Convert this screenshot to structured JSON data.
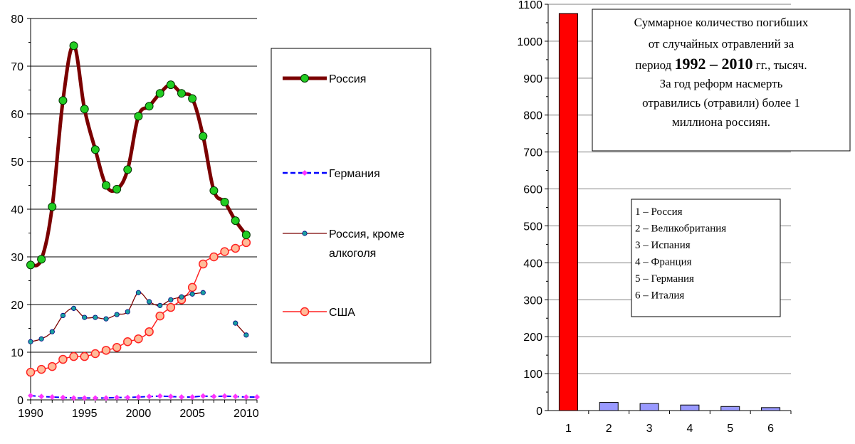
{
  "chart_data": [
    {
      "type": "line",
      "title": "",
      "xlabel": "",
      "ylabel": "",
      "xlim": [
        1990,
        2011
      ],
      "ylim": [
        0,
        80
      ],
      "x_ticks": [
        "1990",
        "1995",
        "2000",
        "2005",
        "2010"
      ],
      "y_ticks": [
        "0",
        "10",
        "20",
        "30",
        "40",
        "50",
        "60",
        "70",
        "80"
      ],
      "grid": "horizontal",
      "legend_position": "right",
      "series": [
        {
          "name": "Россия",
          "color": "#7b0000",
          "marker_color": "#22cc22",
          "points": [
            [
              1990,
              28.3
            ],
            [
              1991,
              29.5
            ],
            [
              1992,
              40.5
            ],
            [
              1993,
              62.8
            ],
            [
              1994,
              74.3
            ],
            [
              1995,
              61.0
            ],
            [
              1996,
              52.5
            ],
            [
              1997,
              45.0
            ],
            [
              1998,
              44.2
            ],
            [
              1999,
              48.3
            ],
            [
              2000,
              59.5
            ],
            [
              2001,
              61.6
            ],
            [
              2002,
              64.3
            ],
            [
              2003,
              66.1
            ],
            [
              2004,
              64.3
            ],
            [
              2005,
              63.2
            ],
            [
              2006,
              55.3
            ],
            [
              2007,
              43.9
            ],
            [
              2008,
              41.5
            ],
            [
              2009,
              37.6
            ],
            [
              2010,
              34.6
            ]
          ]
        },
        {
          "name": "Германия",
          "color": "#0000ff",
          "marker_color": "#ff33ff",
          "points": [
            [
              1990,
              0.9
            ],
            [
              1991,
              0.7
            ],
            [
              1992,
              0.6
            ],
            [
              1993,
              0.5
            ],
            [
              1994,
              0.4
            ],
            [
              1995,
              0.4
            ],
            [
              1996,
              0.4
            ],
            [
              1997,
              0.4
            ],
            [
              1998,
              0.5
            ],
            [
              1999,
              0.5
            ],
            [
              2000,
              0.6
            ],
            [
              2001,
              0.7
            ],
            [
              2002,
              0.8
            ],
            [
              2003,
              0.7
            ],
            [
              2004,
              0.6
            ],
            [
              2005,
              0.6
            ],
            [
              2006,
              0.8
            ],
            [
              2007,
              0.7
            ],
            [
              2008,
              0.8
            ],
            [
              2009,
              0.7
            ],
            [
              2010,
              0.6
            ],
            [
              2011,
              0.6
            ]
          ]
        },
        {
          "name": "Россия, кроме алкоголя",
          "color": "#7b0000",
          "marker_color": "#1aa0a0",
          "segments": [
            [
              [
                1990,
                12.2
              ],
              [
                1991,
                12.8
              ],
              [
                1992,
                14.3
              ],
              [
                1993,
                17.7
              ],
              [
                1994,
                19.2
              ],
              [
                1995,
                17.3
              ],
              [
                1996,
                17.3
              ],
              [
                1997,
                17.0
              ],
              [
                1998,
                17.9
              ],
              [
                1999,
                18.5
              ],
              [
                2000,
                22.5
              ],
              [
                2001,
                20.6
              ],
              [
                2002,
                19.8
              ],
              [
                2003,
                21.0
              ],
              [
                2004,
                21.6
              ],
              [
                2005,
                22.2
              ],
              [
                2006,
                22.5
              ]
            ],
            [
              [
                2009,
                16.1
              ],
              [
                2010,
                13.6
              ]
            ]
          ]
        },
        {
          "name": "США",
          "color": "#ff2222",
          "marker_color": "#ffbb99",
          "points": [
            [
              1990,
              5.8
            ],
            [
              1991,
              6.4
            ],
            [
              1992,
              7.0
            ],
            [
              1993,
              8.5
            ],
            [
              1994,
              9.1
            ],
            [
              1995,
              9.1
            ],
            [
              1996,
              9.7
            ],
            [
              1997,
              10.4
            ],
            [
              1998,
              11.0
            ],
            [
              1999,
              12.2
            ],
            [
              2000,
              12.8
            ],
            [
              2001,
              14.3
            ],
            [
              2002,
              17.6
            ],
            [
              2003,
              19.4
            ],
            [
              2004,
              21.0
            ],
            [
              2005,
              23.6
            ],
            [
              2006,
              28.5
            ],
            [
              2007,
              30.0
            ],
            [
              2008,
              31.1
            ],
            [
              2009,
              31.8
            ],
            [
              2010,
              33.0
            ]
          ]
        }
      ]
    },
    {
      "type": "bar",
      "title": "",
      "categories": [
        "1",
        "2",
        "3",
        "4",
        "5",
        "6"
      ],
      "values": [
        1075,
        22,
        19,
        15,
        11,
        8
      ],
      "bar_colors": [
        "#ff0000",
        "#9999ff",
        "#9999ff",
        "#9999ff",
        "#9999ff",
        "#9999ff"
      ],
      "ylim": [
        0,
        1100
      ],
      "y_ticks": [
        "0",
        "100",
        "200",
        "300",
        "400",
        "500",
        "600",
        "700",
        "800",
        "900",
        "1000",
        "1100"
      ],
      "grid": "horizontal",
      "annotation": {
        "line1": "Суммарное количество погибших",
        "line2": "от случайных отравлений за",
        "line3_pre": "период ",
        "line3_bold": "1992 – 2010",
        "line3_post": " гг., тысяч.",
        "line4": "За год реформ насмерть",
        "line5": "отравились (отравили) более 1",
        "line6": "миллиона россиян."
      },
      "inner_legend": [
        "1 – Россия",
        "2 – Великобритания",
        "3 – Испания",
        "4 – Франция",
        "5 – Германия",
        "6 – Италия"
      ]
    }
  ]
}
